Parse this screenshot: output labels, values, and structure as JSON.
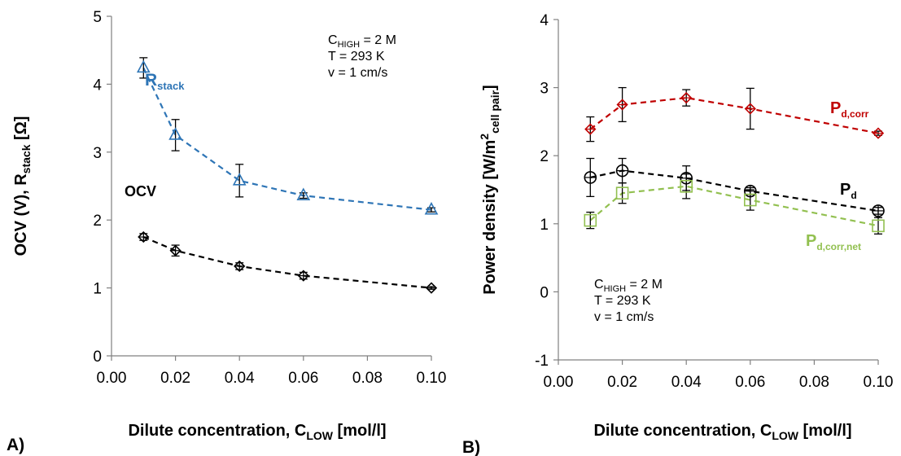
{
  "chart_data": [
    {
      "type": "line",
      "panel_label": "A)",
      "xlabel": "Dilute concentration, C",
      "xlabel_sub": "LOW",
      "xlabel_unit": " [mol/l]",
      "ylabel": "OCV (V), R",
      "ylabel_sub": "stack",
      "ylabel_unit": " [Ω]",
      "xlim": [
        0.0,
        0.1
      ],
      "ylim": [
        0,
        5
      ],
      "xticks": [
        "0.00",
        "0.02",
        "0.04",
        "0.06",
        "0.08",
        "0.10"
      ],
      "yticks": [
        "0",
        "1",
        "2",
        "3",
        "4",
        "5"
      ],
      "grid": false,
      "annotation": {
        "line1_main": "C",
        "line1_sub": "HIGH",
        "line1_rest": " = 2 M",
        "line2": "T = 293 K",
        "line3": "v = 1 cm/s"
      },
      "series": [
        {
          "name": "R",
          "name_sub": "stack",
          "color": "#2e75b6",
          "marker": "triangle",
          "x": [
            0.01,
            0.02,
            0.04,
            0.06,
            0.1
          ],
          "y": [
            4.24,
            3.25,
            2.58,
            2.36,
            2.15
          ],
          "err": [
            0.15,
            0.23,
            0.24,
            0.04,
            0.03
          ]
        },
        {
          "name": "OCV",
          "name_sub": "",
          "color": "#000000",
          "marker": "diamond-plus",
          "x": [
            0.01,
            0.02,
            0.04,
            0.06,
            0.1
          ],
          "y": [
            1.75,
            1.55,
            1.32,
            1.18,
            1.0
          ],
          "err": [
            0.05,
            0.08,
            0.05,
            0.05,
            0.02
          ]
        }
      ]
    },
    {
      "type": "line",
      "panel_label": "B)",
      "xlabel": "Dilute concentration, C",
      "xlabel_sub": "LOW",
      "xlabel_unit": " [mol/l]",
      "ylabel": "Power density [W/m",
      "ylabel_sup": "2",
      "ylabel_sub": "cell pair",
      "ylabel_unit": "]",
      "xlim": [
        0.0,
        0.1
      ],
      "ylim": [
        -1,
        4
      ],
      "xticks": [
        "0.00",
        "0.02",
        "0.04",
        "0.06",
        "0.08",
        "0.10"
      ],
      "yticks": [
        "-1",
        "0",
        "1",
        "2",
        "3",
        "4"
      ],
      "grid": false,
      "annotation": {
        "line1_main": "C",
        "line1_sub": "HIGH",
        "line1_rest": " = 2 M",
        "line2": "T = 293 K",
        "line3": "v = 1 cm/s"
      },
      "series": [
        {
          "name": "P",
          "name_sub": "d,corr",
          "color": "#c00000",
          "marker": "diamond-plus",
          "x": [
            0.01,
            0.02,
            0.04,
            0.06,
            0.1
          ],
          "y": [
            2.39,
            2.75,
            2.85,
            2.69,
            2.33
          ],
          "err": [
            0.18,
            0.25,
            0.12,
            0.3,
            0.03
          ]
        },
        {
          "name": "P",
          "name_sub": "d",
          "color": "#000000",
          "marker": "circle-plus",
          "x": [
            0.01,
            0.02,
            0.04,
            0.06,
            0.1
          ],
          "y": [
            1.68,
            1.78,
            1.67,
            1.48,
            1.19
          ],
          "err": [
            0.28,
            0.18,
            0.18,
            0.05,
            0.05
          ]
        },
        {
          "name": "P",
          "name_sub": "d,corr,net",
          "color": "#92c050",
          "marker": "square",
          "x": [
            0.01,
            0.02,
            0.04,
            0.06,
            0.1
          ],
          "y": [
            1.05,
            1.45,
            1.55,
            1.35,
            0.97
          ],
          "err": [
            0.12,
            0.15,
            0.18,
            0.15,
            0.12
          ]
        }
      ]
    }
  ]
}
